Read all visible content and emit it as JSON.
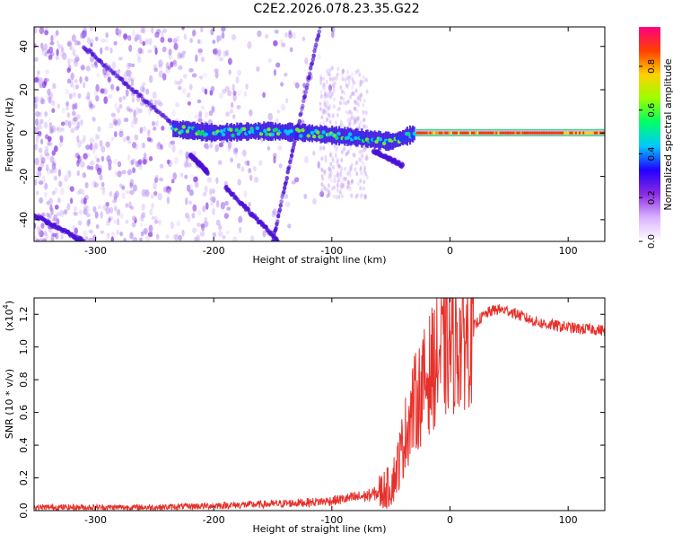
{
  "title": "C2E2.2026.078.23.35.G22",
  "chart_data": [
    {
      "type": "heatmap",
      "title": "C2E2.2026.078.23.35.G22",
      "xlabel": "Height of straight line (km)",
      "ylabel": "Frequency (Hz)",
      "xlim": [
        -352,
        131
      ],
      "ylim": [
        -50,
        49
      ],
      "xticks": [
        -300,
        -200,
        -100,
        0,
        100
      ],
      "yticks": [
        -40,
        -20,
        0,
        20,
        40
      ],
      "colorbar": {
        "label": "Normalized spectral amplitude",
        "range": [
          0,
          0.98
        ],
        "ticks": [
          "0.0",
          "0.2",
          "0.4",
          "0.6",
          "0.8"
        ],
        "colors": [
          "#ffffff",
          "#d9b3ff",
          "#8a2be2",
          "#2200ff",
          "#00c8ff",
          "#00ff66",
          "#9cff00",
          "#ffd000",
          "#ff4000",
          "#ff0080"
        ]
      },
      "ridge": [
        {
          "x": -235,
          "y": 2
        },
        {
          "x": -200,
          "y": 0
        },
        {
          "x": -160,
          "y": 1
        },
        {
          "x": -120,
          "y": 0
        },
        {
          "x": -80,
          "y": -2
        },
        {
          "x": -50,
          "y": -4
        },
        {
          "x": -30,
          "y": 0
        },
        {
          "x": 0,
          "y": 0
        },
        {
          "x": 50,
          "y": 0
        },
        {
          "x": 100,
          "y": 0
        },
        {
          "x": 131,
          "y": 0
        }
      ],
      "traces": [
        {
          "x": [
            -310,
            -235
          ],
          "y": [
            40,
            4
          ]
        },
        {
          "x": [
            -220,
            -205
          ],
          "y": [
            -10,
            -18
          ]
        },
        {
          "x": [
            -190,
            -145
          ],
          "y": [
            -25,
            -50
          ]
        },
        {
          "x": [
            -150,
            -110
          ],
          "y": [
            -50,
            49
          ]
        },
        {
          "x": [
            -352,
            -310
          ],
          "y": [
            -38,
            -50
          ]
        },
        {
          "x": [
            -65,
            -40
          ],
          "y": [
            -8,
            -15
          ]
        }
      ]
    },
    {
      "type": "line",
      "xlabel": "Height of straight line (km)",
      "ylabel": "SNR (10 * v/v)",
      "yscale_label": "(x10",
      "yscale_exp": "4",
      "xlim": [
        -352,
        131
      ],
      "ylim": [
        0,
        1.3
      ],
      "xticks": [
        -300,
        -200,
        -100,
        0,
        100
      ],
      "yticks": [
        "0.0",
        "0.2",
        "0.4",
        "0.6",
        "0.8",
        "1.0",
        "1.2"
      ],
      "color": "#e8302a",
      "series": [
        {
          "x": [
            -352,
            -300,
            -250,
            -200,
            -150,
            -120,
            -100,
            -90,
            -80,
            -70,
            -60,
            -50,
            -45,
            -40,
            -35,
            -30,
            -25,
            -20,
            -15,
            -10,
            -5,
            0,
            5,
            10,
            15,
            20,
            25,
            30,
            35,
            40,
            50,
            60,
            70,
            80,
            90,
            100,
            110,
            120,
            131
          ],
          "y": [
            0.02,
            0.02,
            0.02,
            0.03,
            0.04,
            0.05,
            0.06,
            0.07,
            0.08,
            0.09,
            0.11,
            0.15,
            0.25,
            0.4,
            0.55,
            0.65,
            0.72,
            0.8,
            0.87,
            0.93,
            0.97,
            1.0,
            1.02,
            1.04,
            1.08,
            1.12,
            1.17,
            1.2,
            1.22,
            1.23,
            1.22,
            1.19,
            1.16,
            1.14,
            1.13,
            1.12,
            1.11,
            1.11,
            1.1
          ]
        }
      ]
    }
  ]
}
